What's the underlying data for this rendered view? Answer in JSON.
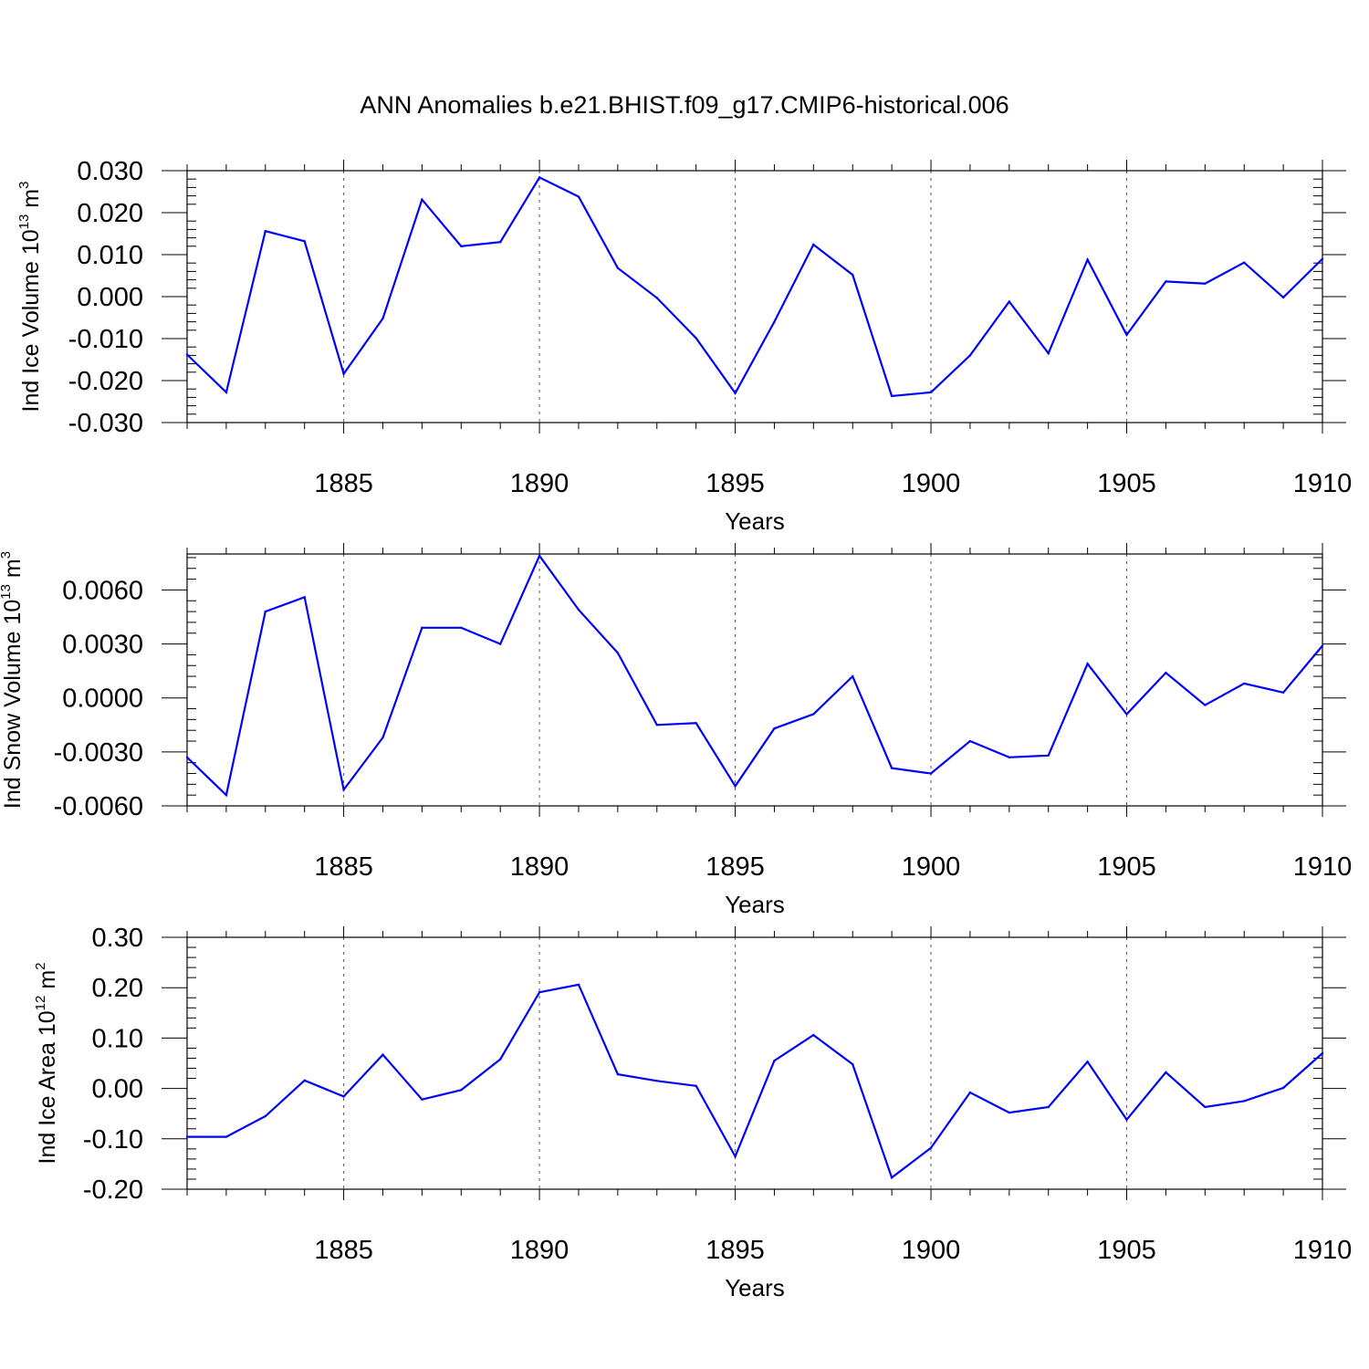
{
  "title": "ANN Anomalies b.e21.BHIST.f09_g17.CMIP6-historical.006",
  "line_color": "#0000ff",
  "chart_data": [
    {
      "type": "line",
      "ylabel_prefix": "Ind Ice Volume 10",
      "ylabel_exp": "13",
      "ylabel_unit": " m",
      "ylabel_unit_exp": "3",
      "xlabel": "Years",
      "xlim": [
        1881,
        1910
      ],
      "ylim": [
        -0.03,
        0.03
      ],
      "x_ticks": [
        1885,
        1890,
        1895,
        1900,
        1905,
        1910
      ],
      "x_tick_labels": [
        "1885",
        "1890",
        "1895",
        "1900",
        "1905",
        "1910"
      ],
      "y_ticks": [
        -0.03,
        -0.02,
        -0.01,
        0.0,
        0.01,
        0.02,
        0.03
      ],
      "y_tick_labels": [
        "-0.030",
        "-0.020",
        "-0.010",
        "0.000",
        "0.010",
        "0.020",
        "0.030"
      ],
      "grid": "vertical dashed at major x ticks",
      "x": [
        1881,
        1882,
        1883,
        1884,
        1885,
        1886,
        1887,
        1888,
        1889,
        1890,
        1891,
        1892,
        1893,
        1894,
        1895,
        1896,
        1897,
        1898,
        1899,
        1900,
        1901,
        1902,
        1903,
        1904,
        1905,
        1906,
        1907,
        1908,
        1909,
        1910
      ],
      "values": [
        -0.0138,
        -0.0228,
        0.0156,
        0.0132,
        -0.0184,
        -0.0052,
        0.0231,
        0.012,
        0.013,
        0.0284,
        0.0238,
        0.0068,
        -0.0003,
        -0.0099,
        -0.023,
        -0.006,
        0.0124,
        0.0052,
        -0.0237,
        -0.0228,
        -0.014,
        -0.0012,
        -0.0135,
        0.0088,
        -0.0091,
        0.0036,
        0.0031,
        0.0081,
        -0.0002,
        0.009
      ]
    },
    {
      "type": "line",
      "ylabel_prefix": "Ind Snow Volume 10",
      "ylabel_exp": "13",
      "ylabel_unit": " m",
      "ylabel_unit_exp": "3",
      "xlabel": "Years",
      "xlim": [
        1881,
        1910
      ],
      "ylim": [
        -0.006,
        0.008
      ],
      "x_ticks": [
        1885,
        1890,
        1895,
        1900,
        1905,
        1910
      ],
      "x_tick_labels": [
        "1885",
        "1890",
        "1895",
        "1900",
        "1905",
        "1910"
      ],
      "y_ticks": [
        -0.006,
        -0.003,
        0.0,
        0.003,
        0.006
      ],
      "y_tick_labels": [
        "-0.0060",
        "-0.0030",
        "0.0000",
        "0.0030",
        "0.0060"
      ],
      "grid": "vertical dashed at major x ticks",
      "x": [
        1881,
        1882,
        1883,
        1884,
        1885,
        1886,
        1887,
        1888,
        1889,
        1890,
        1891,
        1892,
        1893,
        1894,
        1895,
        1896,
        1897,
        1898,
        1899,
        1900,
        1901,
        1902,
        1903,
        1904,
        1905,
        1906,
        1907,
        1908,
        1909,
        1910
      ],
      "values": [
        -0.0033,
        -0.0054,
        0.0048,
        0.0056,
        -0.0051,
        -0.0022,
        0.0039,
        0.0039,
        0.003,
        0.0079,
        0.0049,
        0.0025,
        -0.0015,
        -0.0014,
        -0.0049,
        -0.0017,
        -0.0009,
        0.0012,
        -0.0039,
        -0.0042,
        -0.0024,
        -0.0033,
        -0.0032,
        0.0019,
        -0.0009,
        0.0014,
        -0.0004,
        0.0008,
        0.0003,
        0.0029
      ]
    },
    {
      "type": "line",
      "ylabel_prefix": "Ind Ice Area 10",
      "ylabel_exp": "12",
      "ylabel_unit": " m",
      "ylabel_unit_exp": "2",
      "xlabel": "Years",
      "xlim": [
        1881,
        1910
      ],
      "ylim": [
        -0.2,
        0.3
      ],
      "x_ticks": [
        1885,
        1890,
        1895,
        1900,
        1905,
        1910
      ],
      "x_tick_labels": [
        "1885",
        "1890",
        "1895",
        "1900",
        "1905",
        "1910"
      ],
      "y_ticks": [
        -0.2,
        -0.1,
        0.0,
        0.1,
        0.2,
        0.3
      ],
      "y_tick_labels": [
        "-0.20",
        "-0.10",
        "0.00",
        "0.10",
        "0.20",
        "0.30"
      ],
      "grid": "vertical dashed at major x ticks",
      "x": [
        1881,
        1882,
        1883,
        1884,
        1885,
        1886,
        1887,
        1888,
        1889,
        1890,
        1891,
        1892,
        1893,
        1894,
        1895,
        1896,
        1897,
        1898,
        1899,
        1900,
        1901,
        1902,
        1903,
        1904,
        1905,
        1906,
        1907,
        1908,
        1909,
        1910
      ],
      "values": [
        -0.096,
        -0.096,
        -0.055,
        0.016,
        -0.016,
        0.067,
        -0.022,
        -0.003,
        0.058,
        0.191,
        0.206,
        0.028,
        0.015,
        0.005,
        -0.135,
        0.055,
        0.106,
        0.048,
        -0.177,
        -0.118,
        -0.008,
        -0.048,
        -0.037,
        0.053,
        -0.062,
        0.032,
        -0.037,
        -0.025,
        0.001,
        0.07
      ]
    }
  ]
}
